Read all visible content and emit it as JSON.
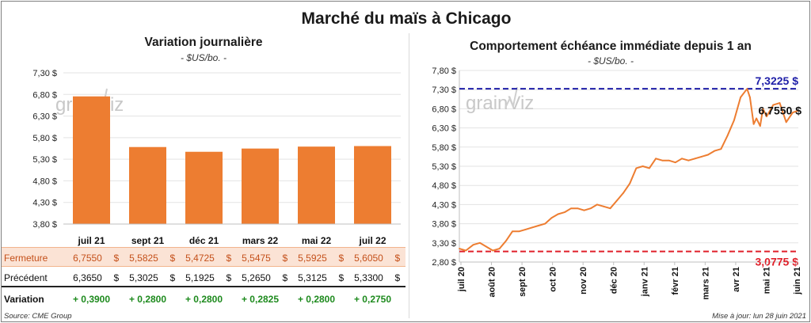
{
  "title": "Marché du maïs à Chicago",
  "left": {
    "title": "Variation  journalière",
    "unit": "- $US/bo. -"
  },
  "right": {
    "title": "Comportement  échéance immédiate  depuis 1 an",
    "unit": "- $US/bo. -"
  },
  "watermark": "grainViz",
  "table": {
    "close_label": "Fermeture",
    "prev_label": "Précédent",
    "var_label": "Variation",
    "close": [
      "6,7550",
      "5,5825",
      "5,4725",
      "5,5475",
      "5,5925",
      "5,6050"
    ],
    "prev": [
      "6,3650",
      "5,3025",
      "5,1925",
      "5,2650",
      "5,3125",
      "5,3300"
    ],
    "var": [
      "+ 0,3900",
      "+ 0,2800",
      "+ 0,2800",
      "+ 0,2825",
      "+ 0,2800",
      "+ 0,2750"
    ],
    "dollar": "$"
  },
  "source": "Source: CME Group",
  "update": "Mise à jour: lun 28 juin 2021",
  "colors": {
    "bar": "#ed7d31",
    "line": "#ed7d31",
    "high": "#1f1fa8",
    "low": "#e0202a",
    "var_green": "#1d8a1d"
  },
  "chart_data": [
    {
      "type": "bar",
      "title": "Variation  journalière",
      "categories": [
        "juil 21",
        "sept 21",
        "déc 21",
        "mars 22",
        "mai 22",
        "juil 22"
      ],
      "values": [
        6.755,
        5.5825,
        5.4725,
        5.5475,
        5.5925,
        5.605
      ],
      "ylim": [
        3.8,
        7.3
      ],
      "yticks": [
        3.8,
        4.3,
        4.8,
        5.3,
        5.8,
        6.3,
        6.8,
        7.3
      ],
      "ytick_labels": [
        "3,80 $",
        "4,30 $",
        "4,80 $",
        "5,30 $",
        "5,80 $",
        "6,30 $",
        "6,80 $",
        "7,30 $"
      ],
      "grid": true
    },
    {
      "type": "line",
      "title": "Comportement  échéance immédiate  depuis 1 an",
      "ylim": [
        2.8,
        7.8
      ],
      "yticks": [
        2.8,
        3.3,
        3.8,
        4.3,
        4.8,
        5.3,
        5.8,
        6.3,
        6.8,
        7.3,
        7.8
      ],
      "ytick_labels": [
        "2,80 $",
        "3,30 $",
        "3,80 $",
        "4,30 $",
        "4,80 $",
        "5,30 $",
        "5,80 $",
        "6,30 $",
        "6,80 $",
        "7,30 $",
        "7,80 $"
      ],
      "xtick_labels": [
        "juil 20",
        "août 20",
        "sept 20",
        "oct 20",
        "nov 20",
        "déc 20",
        "janv 21",
        "févr 21",
        "mars 21",
        "avr 21",
        "mai 21",
        "juin 21"
      ],
      "x": [
        "2020-06-29",
        "2020-07-06",
        "2020-07-14",
        "2020-07-21",
        "2020-07-28",
        "2020-08-04",
        "2020-08-11",
        "2020-08-18",
        "2020-08-25",
        "2020-09-01",
        "2020-09-08",
        "2020-09-15",
        "2020-09-22",
        "2020-09-29",
        "2020-10-06",
        "2020-10-13",
        "2020-10-20",
        "2020-10-27",
        "2020-11-03",
        "2020-11-10",
        "2020-11-17",
        "2020-11-24",
        "2020-12-01",
        "2020-12-08",
        "2020-12-15",
        "2020-12-22",
        "2020-12-29",
        "2021-01-05",
        "2021-01-12",
        "2021-01-19",
        "2021-01-26",
        "2021-02-02",
        "2021-02-09",
        "2021-02-16",
        "2021-02-23",
        "2021-03-02",
        "2021-03-09",
        "2021-03-16",
        "2021-03-23",
        "2021-03-30",
        "2021-04-06",
        "2021-04-13",
        "2021-04-20",
        "2021-04-27",
        "2021-05-04",
        "2021-05-07",
        "2021-05-11",
        "2021-05-14",
        "2021-05-18",
        "2021-05-21",
        "2021-05-25",
        "2021-06-01",
        "2021-06-08",
        "2021-06-15",
        "2021-06-22",
        "2021-06-28"
      ],
      "y": [
        3.15,
        3.1,
        3.25,
        3.3,
        3.2,
        3.1,
        3.15,
        3.35,
        3.6,
        3.6,
        3.65,
        3.7,
        3.75,
        3.8,
        3.95,
        4.05,
        4.1,
        4.2,
        4.2,
        4.15,
        4.2,
        4.3,
        4.25,
        4.2,
        4.4,
        4.6,
        4.85,
        5.25,
        5.3,
        5.25,
        5.5,
        5.45,
        5.45,
        5.4,
        5.5,
        5.45,
        5.5,
        5.55,
        5.6,
        5.7,
        5.75,
        6.1,
        6.5,
        7.1,
        7.32,
        7.1,
        6.4,
        6.55,
        6.35,
        6.8,
        6.6,
        6.9,
        6.95,
        6.45,
        6.7,
        6.755
      ],
      "high": {
        "value": 7.3225,
        "label": "7,3225 $"
      },
      "low": {
        "value": 3.0775,
        "label": "3,0775 $"
      },
      "last": {
        "value": 6.755,
        "label": "6,7550 $"
      },
      "grid": true
    }
  ]
}
